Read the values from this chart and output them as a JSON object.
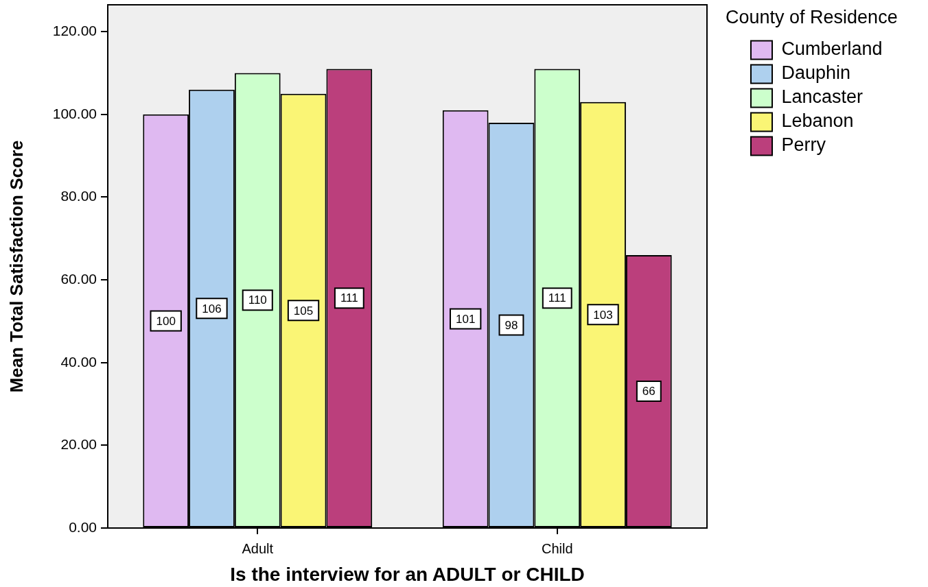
{
  "chart_data": {
    "type": "bar",
    "xlabel": "Is the interview for an ADULT or CHILD",
    "ylabel": "Mean Total Satisfaction Score",
    "legend_title": "County of Residence",
    "categories": [
      "Adult",
      "Child"
    ],
    "series": [
      {
        "name": "Cumberland",
        "color": "#dfb9f1",
        "values": [
          100,
          101
        ]
      },
      {
        "name": "Dauphin",
        "color": "#aed0ee",
        "values": [
          106,
          98
        ]
      },
      {
        "name": "Lancaster",
        "color": "#ccffcc",
        "values": [
          110,
          111
        ]
      },
      {
        "name": "Lebanon",
        "color": "#faf575",
        "values": [
          105,
          103
        ]
      },
      {
        "name": "Perry",
        "color": "#bb3f7c",
        "values": [
          111,
          66
        ]
      }
    ],
    "ylim": [
      0,
      126.5
    ],
    "yticks": [
      {
        "value": 0,
        "label": "0.00"
      },
      {
        "value": 20,
        "label": "20.00"
      },
      {
        "value": 40,
        "label": "40.00"
      },
      {
        "value": 60,
        "label": "60.00"
      },
      {
        "value": 80,
        "label": "80.00"
      },
      {
        "value": 100,
        "label": "100.00"
      },
      {
        "value": 120,
        "label": "120.00"
      }
    ],
    "grid": false,
    "legend": "top right",
    "data_labels": true
  }
}
